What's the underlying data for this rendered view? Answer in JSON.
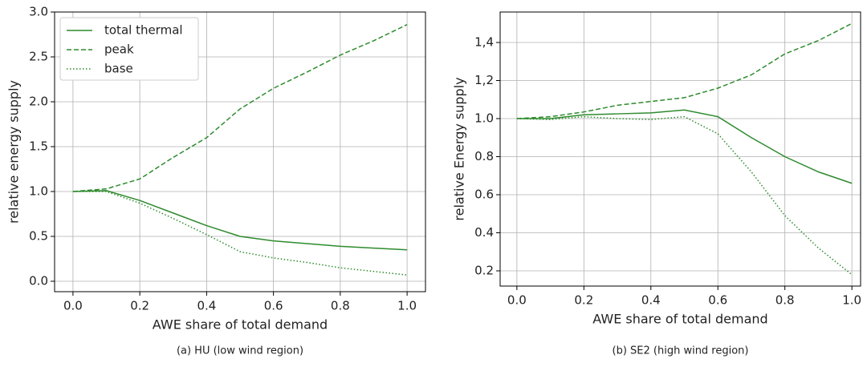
{
  "chart_data": [
    {
      "type": "line",
      "x": [
        0,
        0.1,
        0.2,
        0.3,
        0.4,
        0.5,
        0.6,
        0.7,
        0.8,
        0.9,
        1.0
      ],
      "series": [
        {
          "name": "total thermal",
          "color": "#2e8b2e",
          "dash": "solid",
          "values": [
            1.0,
            1.01,
            0.9,
            0.76,
            0.62,
            0.5,
            0.45,
            0.42,
            0.39,
            0.37,
            0.35
          ]
        },
        {
          "name": "peak",
          "color": "#2e8b2e",
          "dash": "dashed",
          "values": [
            1.0,
            1.03,
            1.14,
            1.38,
            1.6,
            1.92,
            2.15,
            2.33,
            2.52,
            2.68,
            2.86
          ]
        },
        {
          "name": "base",
          "color": "#2e8b2e",
          "dash": "dotted",
          "values": [
            1.0,
            1.0,
            0.87,
            0.7,
            0.52,
            0.33,
            0.26,
            0.21,
            0.15,
            0.11,
            0.07
          ]
        }
      ],
      "xlabel": "AWE share of total demand",
      "ylabel": "relative energy supply",
      "xlim": [
        -0.055,
        1.055
      ],
      "ylim": [
        -0.116,
        3.0
      ],
      "xticks": [
        {
          "value": 0,
          "label": "0.0"
        },
        0.2,
        0.4,
        0.6,
        0.8,
        {
          "value": 1,
          "label": "1.0"
        }
      ],
      "yticks": [
        {
          "value": 0,
          "label": "0.0"
        },
        0.5,
        {
          "value": 1,
          "label": "1.0"
        },
        1.5,
        {
          "value": 2,
          "label": "2.0"
        },
        2.5,
        {
          "value": 3,
          "label": "3.0"
        }
      ],
      "grid": true,
      "legend": "upper left",
      "caption": "(a) HU (low wind region)"
    },
    {
      "type": "line",
      "x": [
        0,
        0.1,
        0.2,
        0.3,
        0.4,
        0.5,
        0.6,
        0.7,
        0.8,
        0.9,
        1.0
      ],
      "series": [
        {
          "color": "#2e8b2e",
          "dash": "solid",
          "values": [
            1.0,
            1.0,
            1.02,
            1.025,
            1.03,
            1.045,
            1.01,
            0.9,
            0.8,
            0.72,
            0.66
          ]
        },
        {
          "color": "#2e8b2e",
          "dash": "dashed",
          "values": [
            1.0,
            1.01,
            1.035,
            1.07,
            1.09,
            1.11,
            1.16,
            1.23,
            1.34,
            1.41,
            1.5
          ]
        },
        {
          "color": "#2e8b2e",
          "dash": "dotted",
          "values": [
            1.0,
            0.995,
            1.01,
            1.0,
            0.995,
            1.01,
            0.92,
            0.72,
            0.49,
            0.32,
            0.18
          ]
        }
      ],
      "xlabel": "AWE share of total demand",
      "ylabel": "relative Energy supply",
      "xlim": [
        -0.05,
        1.026
      ],
      "ylim": [
        0.12,
        1.56
      ],
      "xticks": [
        {
          "value": 0,
          "label": "0.0"
        },
        0.2,
        0.4,
        0.6,
        0.8,
        {
          "value": 1,
          "label": "1.0"
        }
      ],
      "yticks": [
        0.2,
        0.4,
        0.6,
        0.8,
        {
          "value": 1,
          "label": "1.0"
        },
        {
          "value": 1.2,
          "label": "1,2"
        },
        {
          "value": 1.4,
          "label": "1,4"
        }
      ],
      "grid": true,
      "caption": "(b) SE2 (high wind region)"
    }
  ]
}
